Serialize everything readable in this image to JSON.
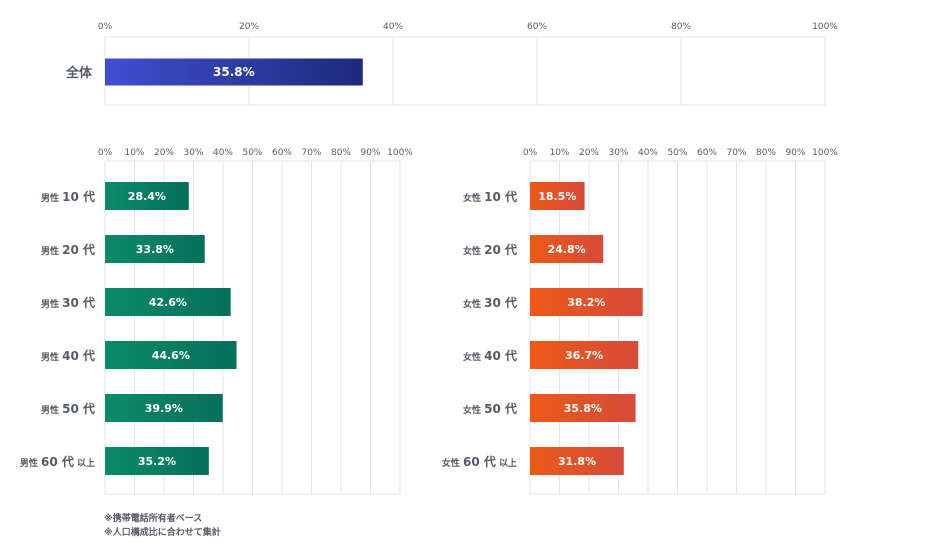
{
  "colors": {
    "total_start": "#3f4fd0",
    "total_end": "#1e2a7a",
    "male_start": "#0a8a6a",
    "male_end": "#06705a",
    "female_start": "#ec5a16",
    "female_end": "#d64a3a",
    "grid": "#e3e4e8",
    "axis_text": "#555b66"
  },
  "chart_data": [
    {
      "type": "bar",
      "orientation": "horizontal",
      "panel": "total",
      "xlim": [
        0,
        100
      ],
      "ticks": [
        "0%",
        "20%",
        "40%",
        "60%",
        "80%",
        "100%"
      ],
      "categories": [
        "全体"
      ],
      "values": [
        35.8
      ],
      "value_labels": [
        "35.8%"
      ]
    },
    {
      "type": "bar",
      "orientation": "horizontal",
      "panel": "male",
      "xlim": [
        0,
        100
      ],
      "ticks": [
        "0%",
        "10%",
        "20%",
        "30%",
        "40%",
        "50%",
        "60%",
        "70%",
        "80%",
        "90%",
        "100%"
      ],
      "categories": [
        {
          "prefix": "男性",
          "age": "10 代",
          "suffix": ""
        },
        {
          "prefix": "男性",
          "age": "20 代",
          "suffix": ""
        },
        {
          "prefix": "男性",
          "age": "30 代",
          "suffix": ""
        },
        {
          "prefix": "男性",
          "age": "40 代",
          "suffix": ""
        },
        {
          "prefix": "男性",
          "age": "50 代",
          "suffix": ""
        },
        {
          "prefix": "男性",
          "age": "60 代",
          "suffix": "以上"
        }
      ],
      "values": [
        28.4,
        33.8,
        42.6,
        44.6,
        39.9,
        35.2
      ],
      "value_labels": [
        "28.4%",
        "33.8%",
        "42.6%",
        "44.6%",
        "39.9%",
        "35.2%"
      ]
    },
    {
      "type": "bar",
      "orientation": "horizontal",
      "panel": "female",
      "xlim": [
        0,
        100
      ],
      "ticks": [
        "0%",
        "10%",
        "20%",
        "30%",
        "40%",
        "50%",
        "60%",
        "70%",
        "80%",
        "90%",
        "100%"
      ],
      "categories": [
        {
          "prefix": "女性",
          "age": "10 代",
          "suffix": ""
        },
        {
          "prefix": "女性",
          "age": "20 代",
          "suffix": ""
        },
        {
          "prefix": "女性",
          "age": "30 代",
          "suffix": ""
        },
        {
          "prefix": "女性",
          "age": "40 代",
          "suffix": ""
        },
        {
          "prefix": "女性",
          "age": "50 代",
          "suffix": ""
        },
        {
          "prefix": "女性",
          "age": "60 代",
          "suffix": "以上"
        }
      ],
      "values": [
        18.5,
        24.8,
        38.2,
        36.7,
        35.8,
        31.8
      ],
      "value_labels": [
        "18.5%",
        "24.8%",
        "38.2%",
        "36.7%",
        "35.8%",
        "31.8%"
      ]
    }
  ],
  "notes": [
    "※携帯電話所有者ベース",
    "※人口構成比に合わせて集計"
  ]
}
